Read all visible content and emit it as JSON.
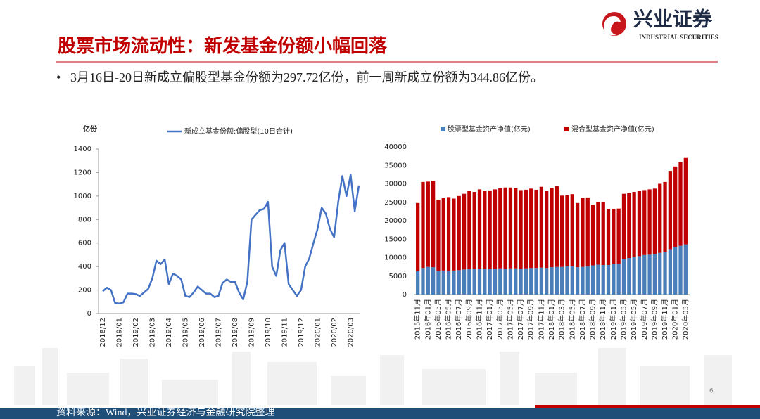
{
  "header": {
    "title": "股票市场流动性：新发基金份额小幅回落",
    "logo_cn": "兴业证券",
    "logo_en": "INDUSTRIAL SECURITIES"
  },
  "bullet": "3月16日-20日新成立偏股型基金份额为297.72亿份，前一周新成立份额为344.86亿份。",
  "chart_data": [
    {
      "type": "line",
      "ylabel": "亿份",
      "categories": [
        "2018/12",
        null,
        null,
        null,
        "2019/01",
        null,
        null,
        null,
        "2019/02",
        null,
        null,
        null,
        "2019/03",
        null,
        null,
        null,
        "2019/04",
        null,
        null,
        null,
        "2019/05",
        null,
        null,
        null,
        "2019/06",
        null,
        null,
        null,
        "2019/07",
        null,
        null,
        null,
        "2019/08",
        null,
        null,
        null,
        "2019/09",
        null,
        null,
        null,
        "2019/10",
        null,
        null,
        null,
        "2019/11",
        null,
        null,
        null,
        "2019/12",
        null,
        null,
        null,
        "2020/01",
        null,
        null,
        null,
        "2020/02",
        null,
        null,
        null,
        "2020/03",
        null,
        null
      ],
      "series": [
        {
          "name": "新成立基金份额:偏股型(10日合计)",
          "color": "#4472c4",
          "values": [
            190,
            220,
            200,
            90,
            85,
            95,
            170,
            170,
            165,
            150,
            180,
            210,
            300,
            450,
            420,
            460,
            250,
            340,
            320,
            290,
            150,
            140,
            180,
            230,
            200,
            170,
            170,
            140,
            150,
            260,
            290,
            270,
            270,
            180,
            120,
            270,
            800,
            840,
            880,
            890,
            950,
            400,
            320,
            540,
            600,
            250,
            200,
            150,
            200,
            400,
            470,
            600,
            720,
            900,
            850,
            720,
            650,
            950,
            1170,
            1000,
            1180,
            870,
            1090
          ]
        }
      ],
      "ylim": [
        0,
        1400
      ],
      "yticks": [
        0,
        200,
        400,
        600,
        800,
        1000,
        1200,
        1400
      ],
      "grid": false
    },
    {
      "type": "bar",
      "stacked": true,
      "categories": [
        "2015年11月",
        null,
        "2016年01月",
        null,
        "2016年03月",
        null,
        "2016年05月",
        null,
        "2016年07月",
        null,
        "2016年09月",
        null,
        "2016年11月",
        null,
        "2017年01月",
        null,
        "2017年03月",
        null,
        "2017年05月",
        null,
        "2017年07月",
        null,
        "2017年09月",
        null,
        "2017年11月",
        null,
        "2018年01月",
        null,
        "2018年03月",
        null,
        "2018年05月",
        null,
        "2018年07月",
        null,
        "2018年09月",
        null,
        "2018年11月",
        null,
        "2019年01月",
        null,
        "2019年03月",
        null,
        "2019年05月",
        null,
        "2019年07月",
        null,
        "2019年09月",
        null,
        "2019年11月",
        null,
        "2020年01月",
        null,
        "2020年03月"
      ],
      "series": [
        {
          "name": "股票型基金资产净值(亿元)",
          "color": "#4a7ebb",
          "values": [
            6300,
            7200,
            7500,
            7400,
            6400,
            6500,
            6400,
            6500,
            6600,
            6800,
            6900,
            6900,
            7000,
            6900,
            6900,
            7000,
            7100,
            7000,
            7100,
            7100,
            7000,
            7100,
            7200,
            7200,
            7300,
            7200,
            7400,
            7500,
            7500,
            7600,
            7700,
            7400,
            7500,
            7600,
            7900,
            8100,
            8000,
            8000,
            8200,
            8300,
            9700,
            9900,
            10200,
            10400,
            10700,
            10800,
            11000,
            11300,
            11600,
            12300,
            12900,
            13200,
            13600
          ]
        },
        {
          "name": "混合型基金资产净值(亿元)",
          "color": "#c00000",
          "values": [
            18500,
            23300,
            23100,
            23400,
            19300,
            19700,
            20000,
            19500,
            20100,
            20500,
            21100,
            20900,
            21500,
            21100,
            21300,
            21500,
            21700,
            22000,
            21900,
            21700,
            21300,
            21300,
            21500,
            21200,
            21900,
            20800,
            21500,
            21900,
            19300,
            19300,
            19500,
            17400,
            18700,
            18700,
            16400,
            16900,
            17000,
            15200,
            15000,
            15000,
            17600,
            17600,
            17600,
            17600,
            17600,
            17700,
            17700,
            18700,
            18900,
            21200,
            21800,
            22700,
            23400
          ]
        }
      ],
      "ylim": [
        0,
        40000
      ],
      "yticks": [
        0,
        5000,
        10000,
        15000,
        20000,
        25000,
        30000,
        35000,
        40000
      ],
      "grid": false
    }
  ],
  "page_number": "6",
  "footer": "资料来源：Wind，兴业证券经济与金融研究院整理"
}
